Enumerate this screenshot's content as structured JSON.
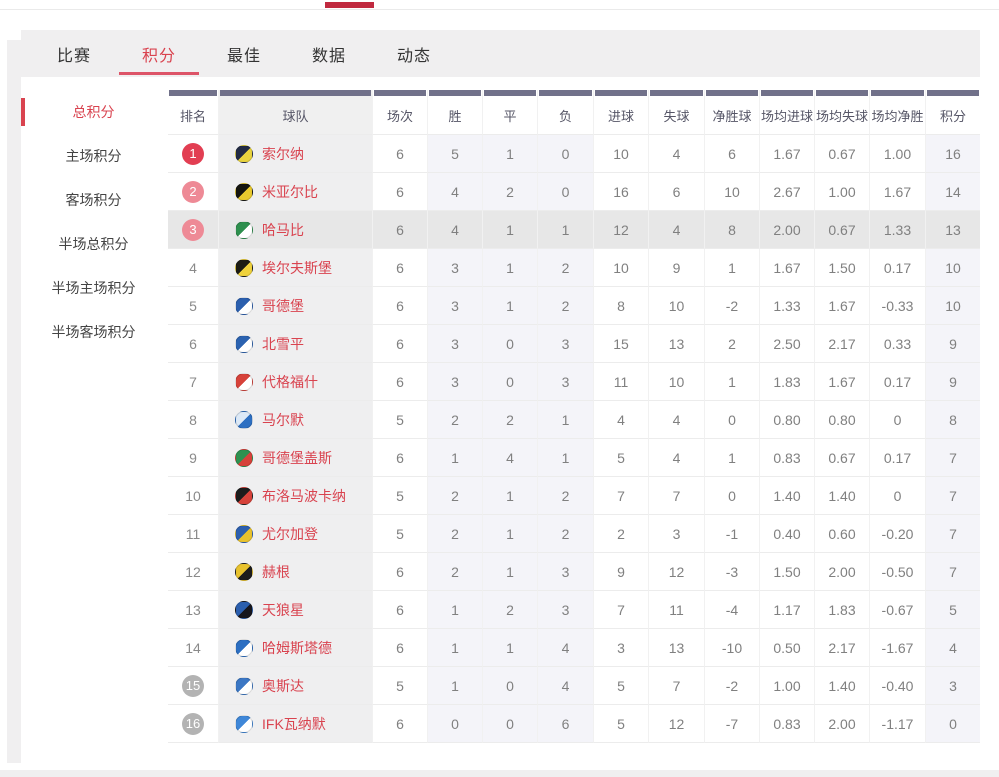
{
  "header_bar": {
    "underline_color": "#c0293f"
  },
  "tabs": {
    "active_index": 1,
    "items": [
      {
        "label": "比赛"
      },
      {
        "label": "积分"
      },
      {
        "label": "最佳"
      },
      {
        "label": "数据"
      },
      {
        "label": "动态"
      }
    ]
  },
  "sidebar": {
    "active_index": 0,
    "items": [
      {
        "label": "总积分"
      },
      {
        "label": "主场积分"
      },
      {
        "label": "客场积分"
      },
      {
        "label": "半场总积分"
      },
      {
        "label": "半场主场积分"
      },
      {
        "label": "半场客场积分"
      }
    ]
  },
  "colors": {
    "accent_red": "#d9434f",
    "tab_underline": "#dd5468",
    "header_top_bar": "#71718a",
    "rank1_badge": "#e23e52",
    "rank2_3_badge": "#ee8a96",
    "rank15_16_badge": "#b3b3b3",
    "row_highlight": "#e7e7e7",
    "shaded_column": "#f4f4f9",
    "team_column": "#efeff0"
  },
  "table": {
    "columns": [
      {
        "key": "rank",
        "label": "排名"
      },
      {
        "key": "team",
        "label": "球队"
      },
      {
        "key": "played",
        "label": "场次"
      },
      {
        "key": "win",
        "label": "胜"
      },
      {
        "key": "draw",
        "label": "平"
      },
      {
        "key": "loss",
        "label": "负"
      },
      {
        "key": "gf",
        "label": "进球"
      },
      {
        "key": "ga",
        "label": "失球"
      },
      {
        "key": "gd",
        "label": "净胜球"
      },
      {
        "key": "avg_gf",
        "label": "场均进球"
      },
      {
        "key": "avg_ga",
        "label": "场均失球"
      },
      {
        "key": "avg_gd",
        "label": "场均净胜"
      },
      {
        "key": "pts",
        "label": "积分"
      }
    ],
    "highlighted_rank": 3,
    "rows": [
      {
        "rank": 1,
        "badge": "top1",
        "team": "索尔纳",
        "logo_colors": [
          "#222b44",
          "#e8d33f"
        ],
        "cells": [
          "6",
          "5",
          "1",
          "0",
          "10",
          "4",
          "6",
          "1.67",
          "0.67",
          "1.00",
          "16"
        ]
      },
      {
        "rank": 2,
        "badge": "top",
        "team": "米亚尔比",
        "logo_colors": [
          "#15150f",
          "#e8c92e"
        ],
        "cells": [
          "6",
          "4",
          "2",
          "0",
          "16",
          "6",
          "10",
          "2.67",
          "1.00",
          "1.67",
          "14"
        ]
      },
      {
        "rank": 3,
        "badge": "top",
        "team": "哈马比",
        "logo_colors": [
          "#2e8f4e",
          "#ffffff"
        ],
        "cells": [
          "6",
          "4",
          "1",
          "1",
          "12",
          "4",
          "8",
          "2.00",
          "0.67",
          "1.33",
          "13"
        ]
      },
      {
        "rank": 4,
        "badge": "none",
        "team": "埃尔夫斯堡",
        "logo_colors": [
          "#1c1c14",
          "#efd23c"
        ],
        "cells": [
          "6",
          "3",
          "1",
          "2",
          "10",
          "9",
          "1",
          "1.67",
          "1.50",
          "0.17",
          "10"
        ]
      },
      {
        "rank": 5,
        "badge": "none",
        "team": "哥德堡",
        "logo_colors": [
          "#2b5fae",
          "#ffffff"
        ],
        "cells": [
          "6",
          "3",
          "1",
          "2",
          "8",
          "10",
          "-2",
          "1.33",
          "1.67",
          "-0.33",
          "10"
        ]
      },
      {
        "rank": 6,
        "badge": "none",
        "team": "北雪平",
        "logo_colors": [
          "#2b62b0",
          "#ffffff"
        ],
        "cells": [
          "6",
          "3",
          "0",
          "3",
          "15",
          "13",
          "2",
          "2.50",
          "2.17",
          "0.33",
          "9"
        ]
      },
      {
        "rank": 7,
        "badge": "none",
        "team": "代格福什",
        "logo_colors": [
          "#d6423a",
          "#ffffff"
        ],
        "cells": [
          "6",
          "3",
          "0",
          "3",
          "11",
          "10",
          "1",
          "1.83",
          "1.67",
          "0.17",
          "9"
        ]
      },
      {
        "rank": 8,
        "badge": "none",
        "team": "马尔默",
        "logo_colors": [
          "#dce9f7",
          "#2c6fc2"
        ],
        "cells": [
          "5",
          "2",
          "2",
          "1",
          "4",
          "4",
          "0",
          "0.80",
          "0.80",
          "0",
          "8"
        ]
      },
      {
        "rank": 9,
        "badge": "none",
        "team": "哥德堡盖斯",
        "logo_colors": [
          "#2f9150",
          "#d6423a"
        ],
        "cells": [
          "6",
          "1",
          "4",
          "1",
          "5",
          "4",
          "1",
          "0.83",
          "0.67",
          "0.17",
          "7"
        ]
      },
      {
        "rank": 10,
        "badge": "none",
        "team": "布洛马波卡纳",
        "logo_colors": [
          "#1c1c1c",
          "#d6423a"
        ],
        "cells": [
          "5",
          "2",
          "1",
          "2",
          "7",
          "7",
          "0",
          "1.40",
          "1.40",
          "0",
          "7"
        ]
      },
      {
        "rank": 11,
        "badge": "none",
        "team": "尤尔加登",
        "logo_colors": [
          "#2c5fae",
          "#e8c22e"
        ],
        "cells": [
          "5",
          "2",
          "1",
          "2",
          "2",
          "3",
          "-1",
          "0.40",
          "0.60",
          "-0.20",
          "7"
        ]
      },
      {
        "rank": 12,
        "badge": "none",
        "team": "赫根",
        "logo_colors": [
          "#e8c22e",
          "#1c1c1c"
        ],
        "cells": [
          "6",
          "2",
          "1",
          "3",
          "9",
          "12",
          "-3",
          "1.50",
          "2.00",
          "-0.50",
          "7"
        ]
      },
      {
        "rank": 13,
        "badge": "none",
        "team": "天狼星",
        "logo_colors": [
          "#2b5fae",
          "#16161d"
        ],
        "cells": [
          "6",
          "1",
          "2",
          "3",
          "7",
          "11",
          "-4",
          "1.17",
          "1.83",
          "-0.67",
          "5"
        ]
      },
      {
        "rank": 14,
        "badge": "none",
        "team": "哈姆斯塔德",
        "logo_colors": [
          "#2c6fc2",
          "#ffffff"
        ],
        "cells": [
          "6",
          "1",
          "1",
          "4",
          "3",
          "13",
          "-10",
          "0.50",
          "2.17",
          "-1.67",
          "4"
        ]
      },
      {
        "rank": 15,
        "badge": "bottom",
        "team": "奥斯达",
        "logo_colors": [
          "#3b77c4",
          "#ffffff"
        ],
        "cells": [
          "5",
          "1",
          "0",
          "4",
          "5",
          "7",
          "-2",
          "1.00",
          "1.40",
          "-0.40",
          "3"
        ]
      },
      {
        "rank": 16,
        "badge": "bottom",
        "team": "IFK瓦纳默",
        "logo_colors": [
          "#3f87d8",
          "#ffffff"
        ],
        "cells": [
          "6",
          "0",
          "0",
          "6",
          "5",
          "12",
          "-7",
          "0.83",
          "2.00",
          "-1.17",
          "0"
        ]
      }
    ]
  }
}
